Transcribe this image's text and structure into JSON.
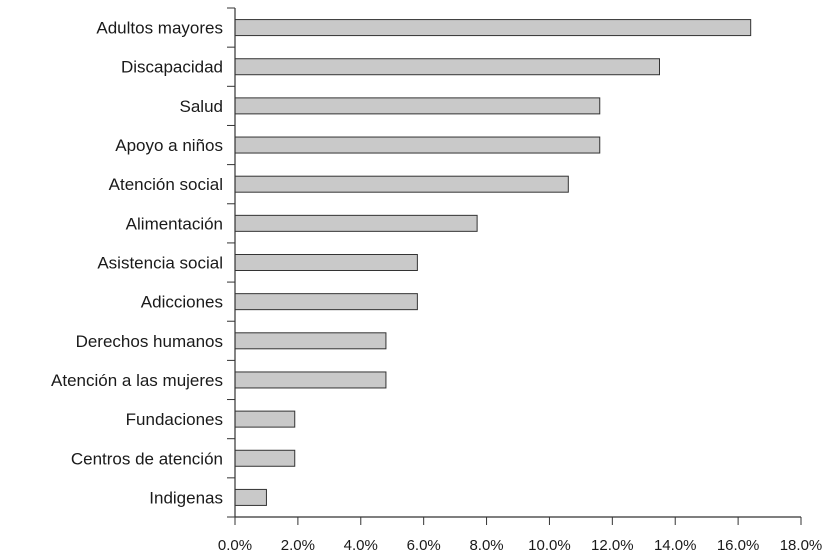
{
  "chart_data": {
    "type": "bar",
    "orientation": "horizontal",
    "title": "",
    "xlabel": "",
    "ylabel": "",
    "categories": [
      "Adultos mayores",
      "Discapacidad",
      "Salud",
      "Apoyo a niños",
      "Atención social",
      "Alimentación",
      "Asistencia social",
      "Adicciones",
      "Derechos humanos",
      "Atención a las mujeres",
      "Fundaciones",
      "Centros de atención",
      "Indigenas"
    ],
    "values": [
      16.4,
      13.5,
      11.6,
      11.6,
      10.6,
      7.7,
      5.8,
      5.8,
      4.8,
      4.8,
      1.9,
      1.9,
      1.0
    ],
    "xlim": [
      0,
      18
    ],
    "x_ticks": [
      0,
      2,
      4,
      6,
      8,
      10,
      12,
      14,
      16,
      18
    ],
    "x_tick_labels": [
      "0.0%",
      "2.0%",
      "4.0%",
      "6.0%",
      "8.0%",
      "10.0%",
      "12.0%",
      "14.0%",
      "16.0%",
      "18.0%"
    ],
    "grid": false,
    "legend": "none",
    "colors": {
      "bar_fill": "#c9c9c9",
      "bar_stroke": "#333333",
      "axis": "#333333",
      "text": "#1a1a1a"
    }
  }
}
